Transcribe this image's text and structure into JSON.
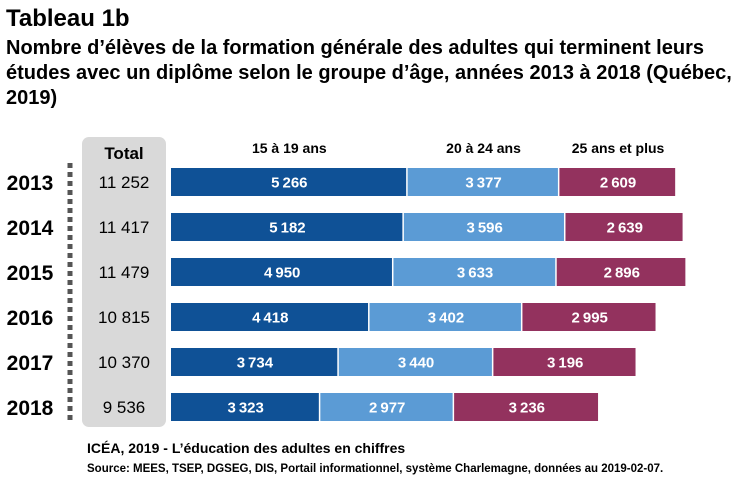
{
  "heading": {
    "label": "Tableau 1b",
    "subtitle": "Nombre d’élèves de la formation générale des adultes qui terminent leurs études avec un diplôme selon le groupe d’âge, années 2013 à 2018 (Québec, 2019)"
  },
  "chart_data": {
    "type": "bar",
    "orientation": "horizontal",
    "stacked": true,
    "categories": [
      "2013",
      "2014",
      "2015",
      "2016",
      "2017",
      "2018"
    ],
    "total_label": "Total",
    "totals": [
      "11 252",
      "11 417",
      "11 479",
      "10 815",
      "10 370",
      "9 536"
    ],
    "series": [
      {
        "name": "15 à 19 ans",
        "values": [
          5266,
          5182,
          4950,
          4418,
          3734,
          3323
        ],
        "color": "#0f5196"
      },
      {
        "name": "20 à 24 ans",
        "values": [
          3377,
          3596,
          3633,
          3402,
          3440,
          2977
        ],
        "color": "#5b9bd5"
      },
      {
        "name": "25 ans et plus",
        "values": [
          2609,
          2639,
          2896,
          2995,
          3196,
          3236
        ],
        "color": "#93325e"
      }
    ],
    "legend_position": "top",
    "grid": false
  },
  "footer": {
    "citation": "ICÉA, 2019 - L’éducation des adultes en chiffres",
    "source": "Source: MEES, TSEP, DGSEG, DIS, Portail informationnel, système Charlemagne, données au 2019-02-07."
  }
}
